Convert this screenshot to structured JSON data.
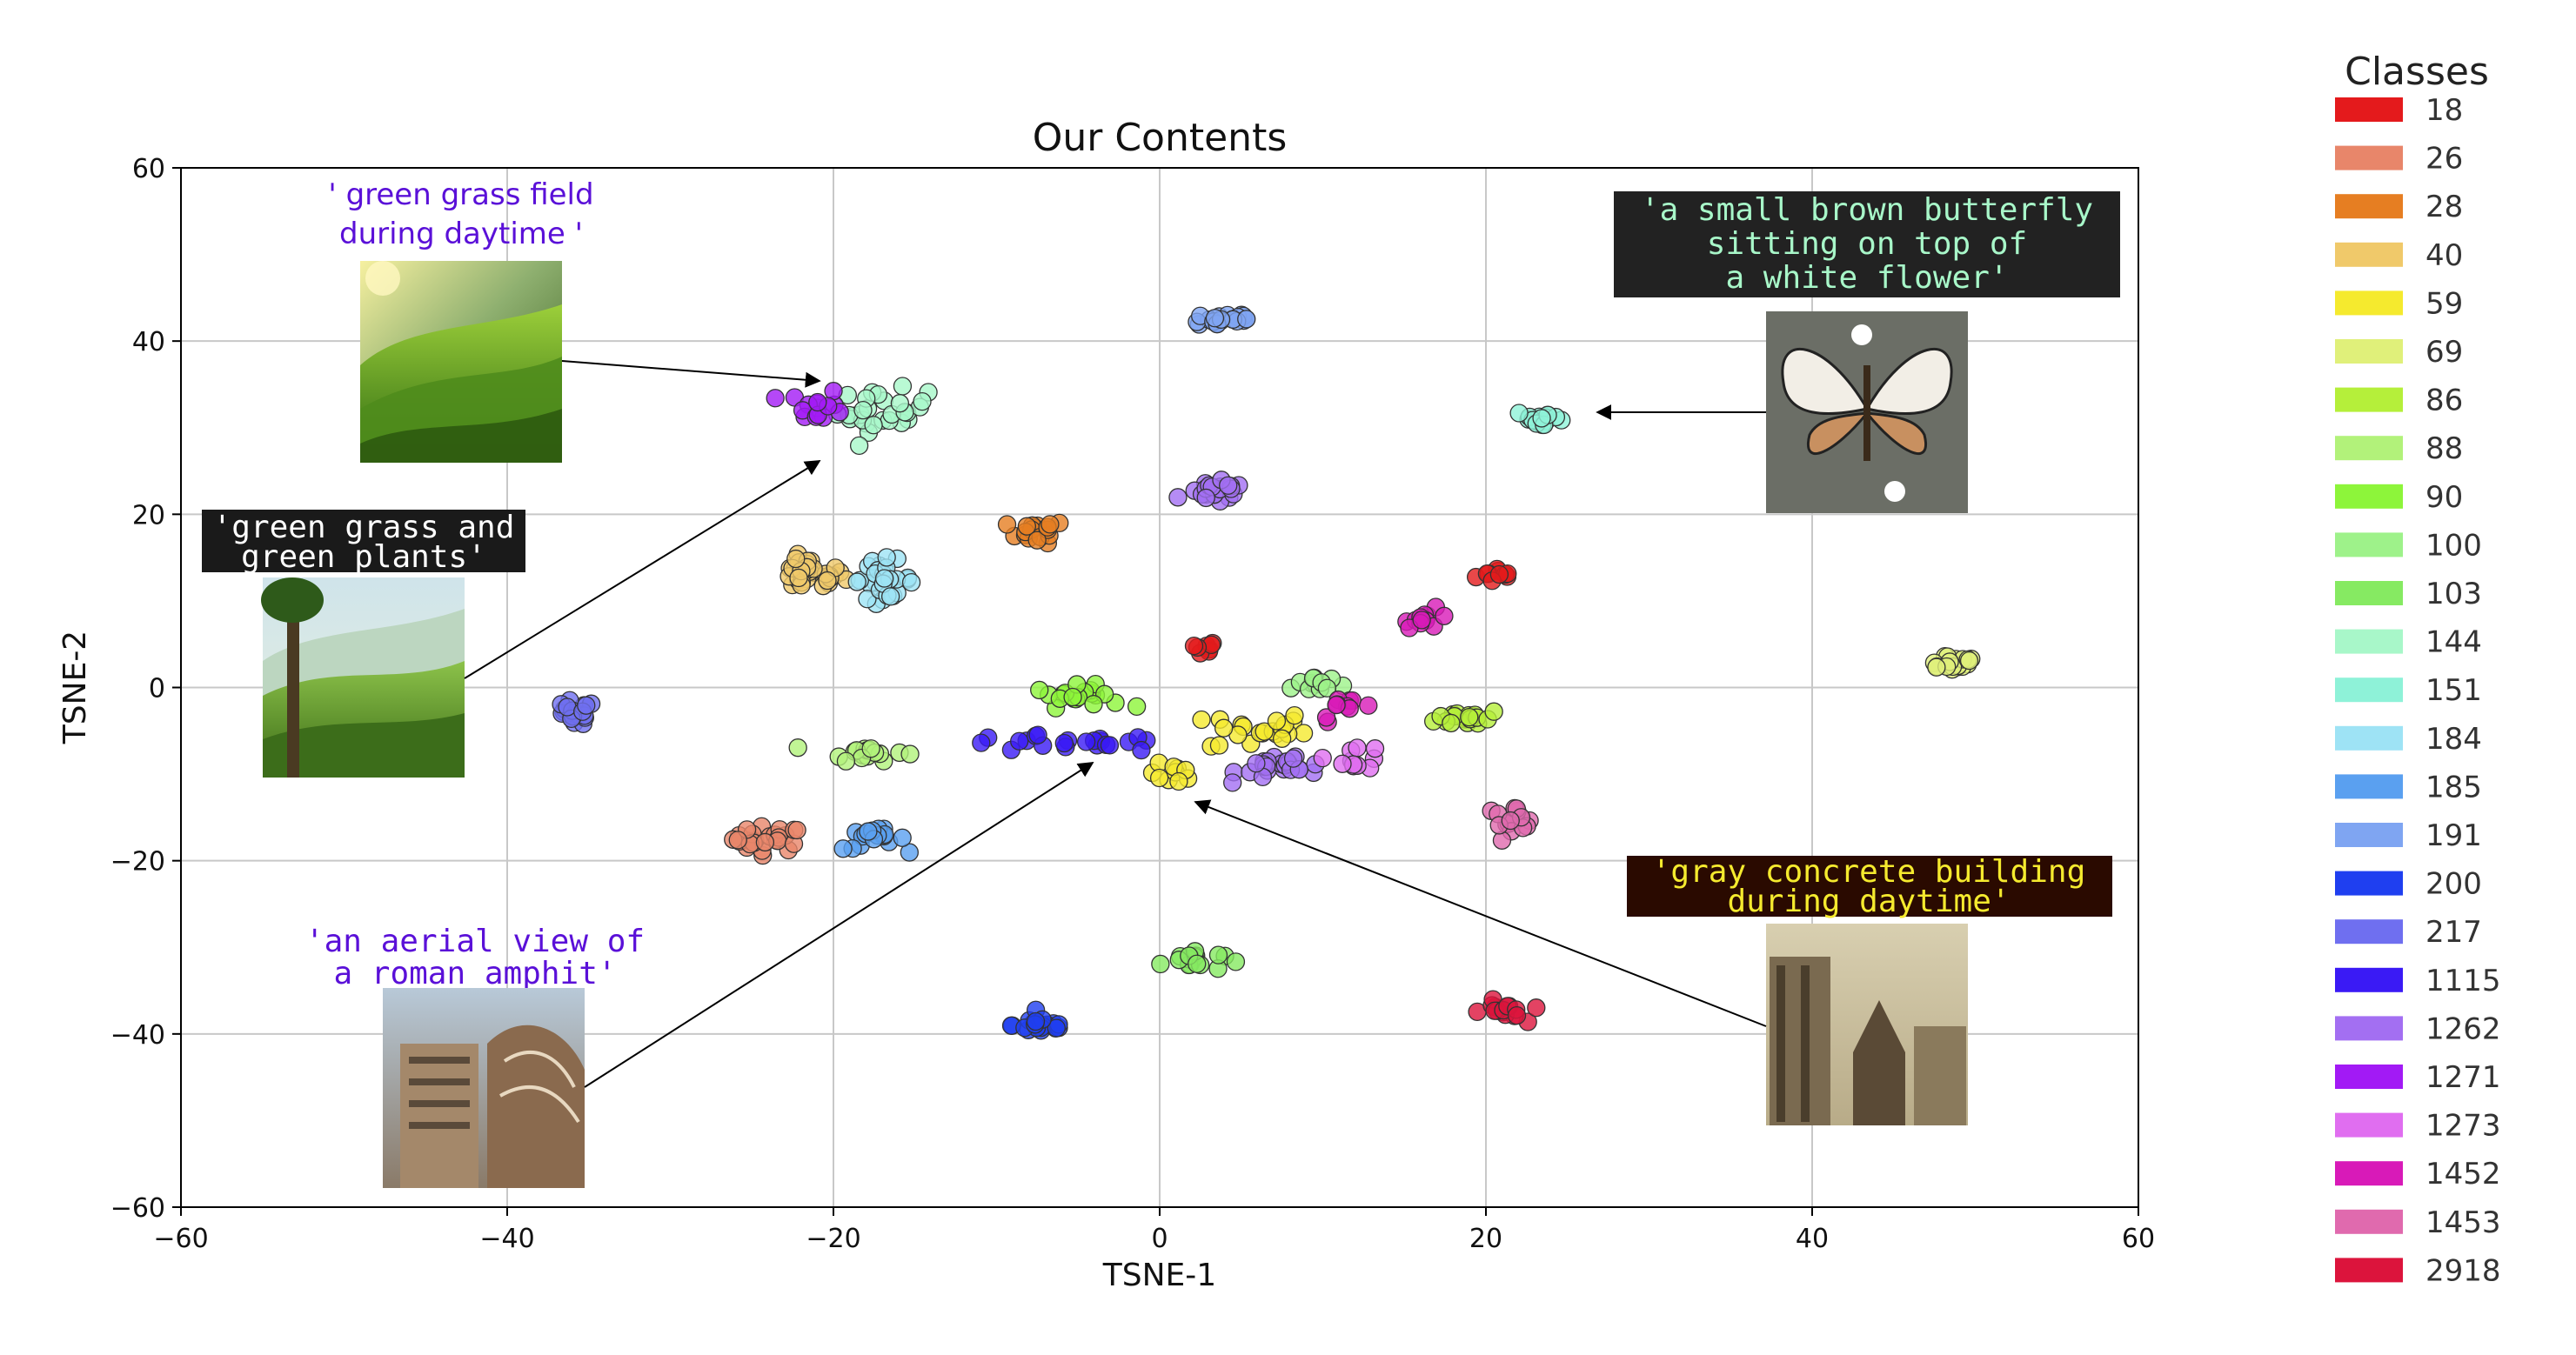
{
  "chart_data": {
    "type": "scatter",
    "title": "Our Contents",
    "xlabel": "TSNE-1",
    "ylabel": "TSNE-2",
    "xlim": [
      -60,
      60
    ],
    "ylim": [
      -60,
      60
    ],
    "x_ticks": [
      -60,
      -40,
      -20,
      0,
      20,
      40,
      60
    ],
    "y_ticks": [
      -60,
      -40,
      -20,
      0,
      20,
      40,
      60
    ],
    "x_tick_labels": [
      "−60",
      "−40",
      "−20",
      "0",
      "20",
      "40",
      "60"
    ],
    "y_tick_labels": [
      "−60",
      "−40",
      "−20",
      "0",
      "20",
      "40",
      "60"
    ],
    "grid": true,
    "legend": {
      "title": "Classes",
      "placement": "right-outside",
      "entries": [
        {
          "label": "18",
          "color": "#e41a1c"
        },
        {
          "label": "26",
          "color": "#e8866a"
        },
        {
          "label": "28",
          "color": "#e67e22"
        },
        {
          "label": "40",
          "color": "#f0c96a"
        },
        {
          "label": "59",
          "color": "#f5ea2e"
        },
        {
          "label": "69",
          "color": "#e0f07a"
        },
        {
          "label": "86",
          "color": "#b5ef3a"
        },
        {
          "label": "88",
          "color": "#b2f27a"
        },
        {
          "label": "90",
          "color": "#8df53a"
        },
        {
          "label": "100",
          "color": "#9ef28a"
        },
        {
          "label": "103",
          "color": "#86ea62"
        },
        {
          "label": "144",
          "color": "#a8f7c9"
        },
        {
          "label": "151",
          "color": "#8ef2d8"
        },
        {
          "label": "184",
          "color": "#9ee3f5"
        },
        {
          "label": "185",
          "color": "#5aa0f0"
        },
        {
          "label": "191",
          "color": "#7fa5f2"
        },
        {
          "label": "200",
          "color": "#1f3ff0"
        },
        {
          "label": "217",
          "color": "#6f6ff0"
        },
        {
          "label": "1115",
          "color": "#3a1af5"
        },
        {
          "label": "1262",
          "color": "#a36ff2"
        },
        {
          "label": "1271",
          "color": "#a21af5"
        },
        {
          "label": "1273",
          "color": "#e06ef0"
        },
        {
          "label": "1452",
          "color": "#d81ab8"
        },
        {
          "label": "1453",
          "color": "#e06aae"
        },
        {
          "label": "2918",
          "color": "#dc143c"
        }
      ]
    },
    "clusters": [
      {
        "class": "18",
        "center": [
          21,
          13
        ],
        "spread": [
          1.3,
          0.8
        ],
        "n": 10
      },
      {
        "class": "18",
        "center": [
          2.5,
          4.5
        ],
        "spread": [
          1.0,
          0.8
        ],
        "n": 8
      },
      {
        "class": "26",
        "center": [
          -24,
          -17.5
        ],
        "spread": [
          1.8,
          1.2
        ],
        "n": 26
      },
      {
        "class": "28",
        "center": [
          -7.5,
          18
        ],
        "spread": [
          1.5,
          1.1
        ],
        "n": 18
      },
      {
        "class": "40",
        "center": [
          -21.5,
          13
        ],
        "spread": [
          1.8,
          1.6
        ],
        "n": 34
      },
      {
        "class": "59",
        "center": [
          0.8,
          -10
        ],
        "spread": [
          1.2,
          1.0
        ],
        "n": 10
      },
      {
        "class": "59",
        "center": [
          6,
          -5
        ],
        "spread": [
          2.5,
          2.0
        ],
        "n": 22
      },
      {
        "class": "69",
        "center": [
          48.5,
          3
        ],
        "spread": [
          1.6,
          0.9
        ],
        "n": 20
      },
      {
        "class": "86",
        "center": [
          19,
          -3.5
        ],
        "spread": [
          1.7,
          0.8
        ],
        "n": 20
      },
      {
        "class": "88",
        "center": [
          -18,
          -7.5
        ],
        "spread": [
          2.0,
          0.8
        ],
        "n": 18
      },
      {
        "class": "90",
        "center": [
          -5,
          -1
        ],
        "spread": [
          2.2,
          1.0
        ],
        "n": 20
      },
      {
        "class": "100",
        "center": [
          9.5,
          0.5
        ],
        "spread": [
          1.6,
          1.2
        ],
        "n": 12
      },
      {
        "class": "103",
        "center": [
          2,
          -31.5
        ],
        "spread": [
          1.6,
          1.0
        ],
        "n": 18
      },
      {
        "class": "144",
        "center": [
          -17,
          32
        ],
        "spread": [
          2.3,
          2.0
        ],
        "n": 30
      },
      {
        "class": "151",
        "center": [
          23.5,
          31
        ],
        "spread": [
          1.4,
          0.9
        ],
        "n": 16
      },
      {
        "class": "184",
        "center": [
          -17,
          12.5
        ],
        "spread": [
          1.6,
          1.8
        ],
        "n": 30
      },
      {
        "class": "185",
        "center": [
          -17.5,
          -17.5
        ],
        "spread": [
          1.6,
          1.0
        ],
        "n": 18
      },
      {
        "class": "191",
        "center": [
          4,
          42.5
        ],
        "spread": [
          1.8,
          0.8
        ],
        "n": 22
      },
      {
        "class": "200",
        "center": [
          -7.2,
          -39
        ],
        "spread": [
          1.5,
          0.9
        ],
        "n": 22
      },
      {
        "class": "217",
        "center": [
          -36,
          -3
        ],
        "spread": [
          1.2,
          1.2
        ],
        "n": 20
      },
      {
        "class": "1115",
        "center": [
          -6,
          -6.5
        ],
        "spread": [
          5.5,
          0.8
        ],
        "n": 22
      },
      {
        "class": "1262",
        "center": [
          3.5,
          22.5
        ],
        "spread": [
          1.5,
          1.0
        ],
        "n": 22
      },
      {
        "class": "1262",
        "center": [
          8,
          -9
        ],
        "spread": [
          2.6,
          1.3
        ],
        "n": 26
      },
      {
        "class": "1271",
        "center": [
          -21,
          32.5
        ],
        "spread": [
          1.5,
          1.5
        ],
        "n": 14
      },
      {
        "class": "1273",
        "center": [
          12,
          -8
        ],
        "spread": [
          1.5,
          1.2
        ],
        "n": 10
      },
      {
        "class": "1452",
        "center": [
          16.5,
          8
        ],
        "spread": [
          1.2,
          0.9
        ],
        "n": 12
      },
      {
        "class": "1452",
        "center": [
          11.5,
          -2.5
        ],
        "spread": [
          1.5,
          1.2
        ],
        "n": 10
      },
      {
        "class": "1453",
        "center": [
          21.5,
          -15
        ],
        "spread": [
          1.5,
          1.1
        ],
        "n": 18
      },
      {
        "class": "2918",
        "center": [
          21,
          -37.5
        ],
        "spread": [
          1.1,
          1.1
        ],
        "n": 16
      }
    ],
    "annotations": [
      {
        "text": "' green grass field\nduring daytime '",
        "style": "plain",
        "points_to": [
          -20,
          35.5
        ]
      },
      {
        "text": "'green grass and\ngreen plants'",
        "style": "mono-dark",
        "points_to": [
          -20,
          26
        ]
      },
      {
        "text": "'an aerial view of\na roman amphit'",
        "style": "mono-light",
        "points_to": [
          -4,
          -9
        ]
      },
      {
        "text": "'a small brown butterfly\nsitting on top of\na white flower'",
        "style": "mono-dark",
        "points_to": [
          27,
          31.5
        ]
      },
      {
        "text": "'gray concrete building\nduring daytime'",
        "style": "mono-yellow",
        "points_to": [
          2,
          -13.5
        ]
      }
    ]
  },
  "annotations_text": {
    "grass_field_line1": "' green grass field",
    "grass_field_line2": "during daytime '",
    "grass_plants_line1": "'green grass and",
    "grass_plants_line2": "green plants'",
    "aerial_line1": "'an aerial view of",
    "aerial_line2": "a roman amphit'",
    "butterfly_line1": "'a small brown butterfly",
    "butterfly_line2": "sitting on top of",
    "butterfly_line3": "a white flower'",
    "building_line1": "'gray concrete building",
    "building_line2": "during daytime'"
  }
}
